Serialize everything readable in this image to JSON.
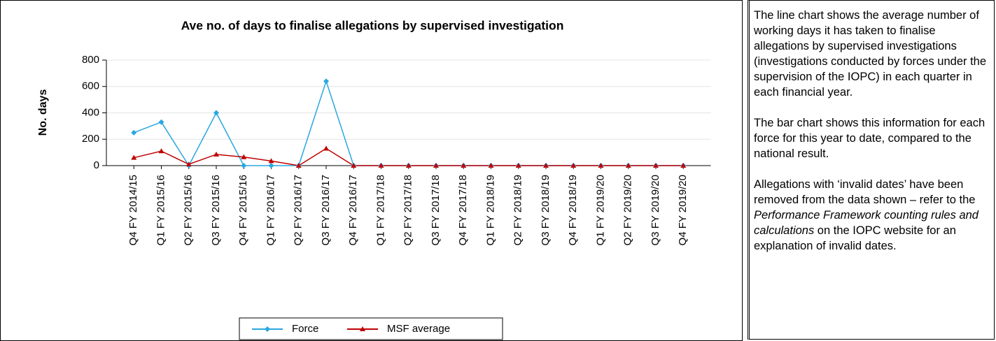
{
  "chart_data": {
    "type": "line",
    "title": "Ave no. of days to finalise allegations by supervised investigation",
    "y_label": "No. days",
    "categories": [
      "Q4 FY 2014/15",
      "Q1 FY 2015/16",
      "Q2 FY 2015/16",
      "Q3 FY 2015/16",
      "Q4 FY 2015/16",
      "Q1 FY 2016/17",
      "Q2 FY 2016/17",
      "Q3 FY 2016/17",
      "Q4 FY 2016/17",
      "Q1 FY 2017/18",
      "Q2 FY 2017/18",
      "Q3 FY 2017/18",
      "Q4 FY 2017/18",
      "Q1 FY 2018/19",
      "Q2 FY 2018/19",
      "Q3 FY 2018/19",
      "Q4 FY 2018/19",
      "Q1 FY 2019/20",
      "Q2 FY 2019/20",
      "Q3 FY 2019/20",
      "Q4 FY 2019/20"
    ],
    "series": [
      {
        "name": "Force",
        "color": "#2aa7e0",
        "values": [
          250,
          330,
          0,
          400,
          0,
          0,
          0,
          640,
          0,
          0,
          0,
          0,
          0,
          0,
          0,
          0,
          0,
          0,
          0,
          0,
          0
        ]
      },
      {
        "name": "MSF average",
        "color": "#c00000",
        "values": [
          60,
          110,
          10,
          85,
          65,
          35,
          0,
          130,
          0,
          0,
          0,
          0,
          0,
          0,
          0,
          0,
          0,
          0,
          0,
          0,
          0
        ]
      }
    ],
    "ylim": [
      0,
      800
    ],
    "yticks": [
      0,
      200,
      400,
      600,
      800
    ],
    "grid": true,
    "legend": "bottom"
  },
  "description": {
    "paragraphs": [
      "The line chart shows the average number of working days it has taken to finalise allegations by supervised investigations (investigations conducted by forces under the supervision of the IOPC) in each quarter in each financial year.",
      "The bar chart shows this information for each force for this year to date, compared to the national result."
    ],
    "note": {
      "before": "Allegations with ‘invalid dates’ have been removed from the data shown – refer to the ",
      "italic": "Performance Framework counting rules and calculations",
      "after": " on the IOPC website for an explanation of invalid dates."
    }
  }
}
